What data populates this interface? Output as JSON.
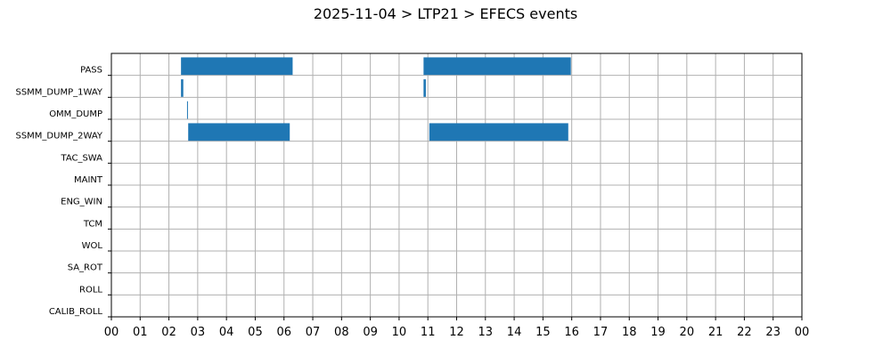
{
  "chart_data": {
    "type": "bar",
    "orientation": "horizontal",
    "title": "2025-11-04 > LTP21 > EFECS events",
    "xlabel": "",
    "ylabel": "",
    "x_range_hours": [
      0,
      24
    ],
    "x_tick_labels": [
      "00",
      "01",
      "02",
      "03",
      "04",
      "05",
      "06",
      "07",
      "08",
      "09",
      "10",
      "11",
      "12",
      "13",
      "14",
      "15",
      "16",
      "17",
      "18",
      "19",
      "20",
      "21",
      "22",
      "23",
      "00"
    ],
    "categories": [
      "PASS",
      "SSMM_DUMP_1WAY",
      "OMM_DUMP",
      "SSMM_DUMP_2WAY",
      "TAC_SWA",
      "MAINT",
      "ENG_WIN",
      "TCM",
      "WOL",
      "SA_ROT",
      "ROLL",
      "CALIB_ROLL"
    ],
    "events": [
      {
        "category": "PASS",
        "start": 2.42,
        "end": 6.3
      },
      {
        "category": "PASS",
        "start": 10.85,
        "end": 15.97
      },
      {
        "category": "SSMM_DUMP_1WAY",
        "start": 2.42,
        "end": 2.5
      },
      {
        "category": "SSMM_DUMP_1WAY",
        "start": 10.85,
        "end": 10.93
      },
      {
        "category": "OMM_DUMP",
        "start": 2.63,
        "end": 2.66
      },
      {
        "category": "SSMM_DUMP_2WAY",
        "start": 2.67,
        "end": 6.2
      },
      {
        "category": "SSMM_DUMP_2WAY",
        "start": 11.05,
        "end": 15.88
      }
    ],
    "bar_color": "#1f77b4",
    "grid": true,
    "legend": false
  }
}
